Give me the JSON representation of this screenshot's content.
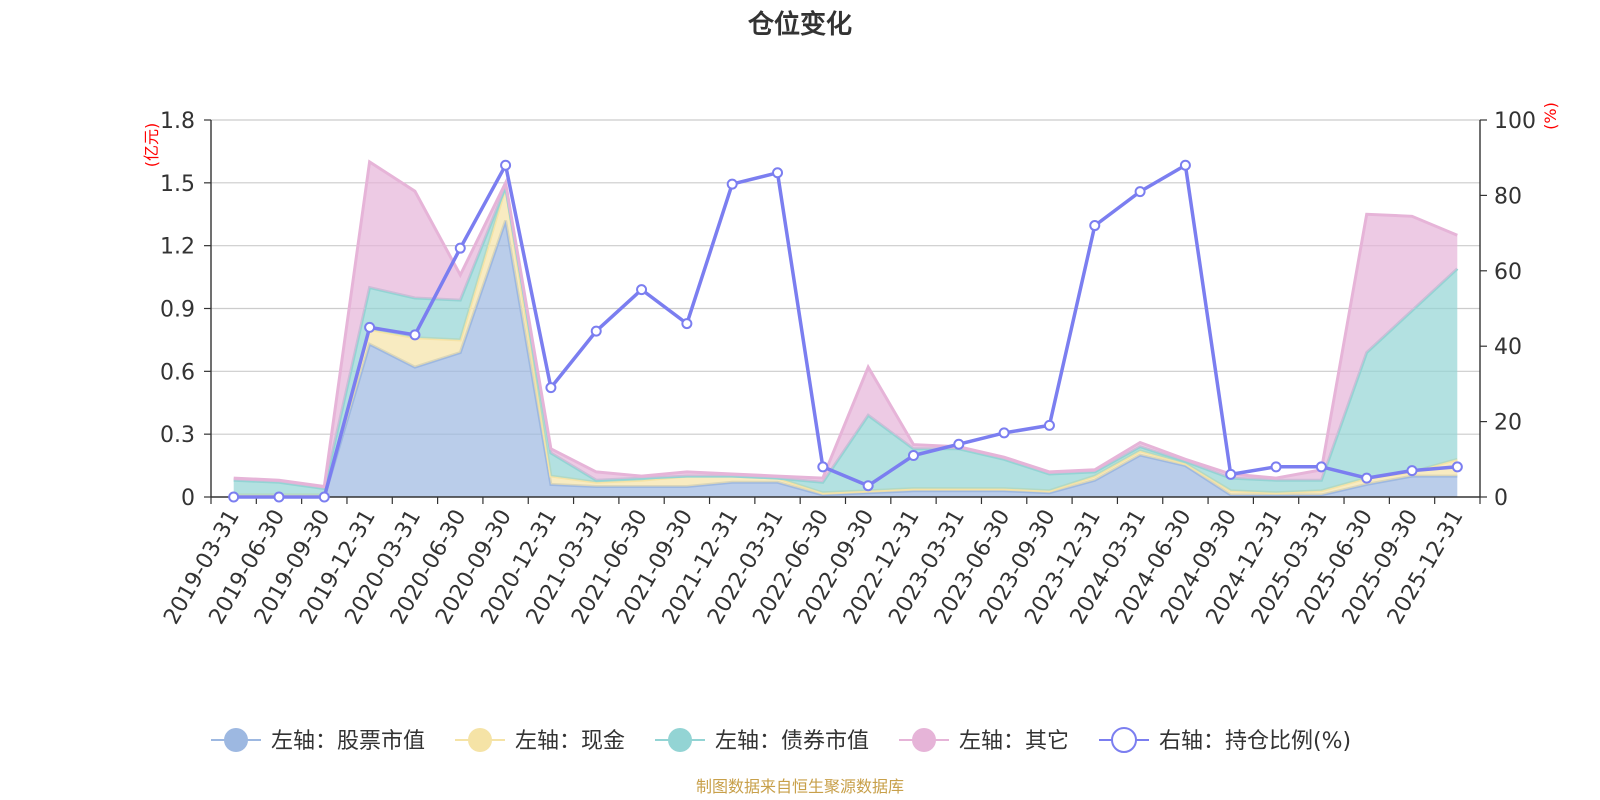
{
  "chart_data": {
    "type": "area",
    "title": "仓位变化",
    "left_unit": "(亿元)",
    "right_unit": "(%)",
    "categories": [
      "2019-03-31",
      "2019-06-30",
      "2019-09-30",
      "2019-12-31",
      "2020-03-31",
      "2020-06-30",
      "2020-09-30",
      "2020-12-31",
      "2021-03-31",
      "2021-06-30",
      "2021-09-30",
      "2021-12-31",
      "2022-03-31",
      "2022-06-30",
      "2022-09-30",
      "2022-12-31",
      "2023-03-31",
      "2023-06-30",
      "2023-09-30",
      "2023-12-31",
      "2024-03-31",
      "2024-06-30",
      "2024-09-30",
      "2024-12-31",
      "2025-03-31",
      "2025-06-30",
      "2025-09-30",
      "2025-12-31"
    ],
    "left_axis": {
      "min": 0,
      "max": 1.8,
      "ticks": [
        "0",
        "0.3",
        "0.6",
        "0.9",
        "1.2",
        "1.5",
        "1.8"
      ]
    },
    "right_axis": {
      "min": 0,
      "max": 100,
      "ticks": [
        "0",
        "20",
        "40",
        "60",
        "80",
        "100"
      ]
    },
    "stacked_series": [
      {
        "name": "左轴：股票市值",
        "color": "#9db8e1",
        "values": [
          0,
          0,
          0,
          0.73,
          0.62,
          0.69,
          1.32,
          0.06,
          0.05,
          0.05,
          0.05,
          0.07,
          0.07,
          0.01,
          0.02,
          0.03,
          0.03,
          0.03,
          0.02,
          0.08,
          0.2,
          0.15,
          0.01,
          0.01,
          0.01,
          0.06,
          0.1,
          0.1
        ]
      },
      {
        "name": "左轴：现金",
        "color": "#f5e3a6",
        "values": [
          0.01,
          0.01,
          0.01,
          0.07,
          0.14,
          0.06,
          0.16,
          0.04,
          0.02,
          0.03,
          0.05,
          0.03,
          0.02,
          0.01,
          0.01,
          0.01,
          0.01,
          0.01,
          0.01,
          0.02,
          0.02,
          0.01,
          0.02,
          0.01,
          0.02,
          0.03,
          0.02,
          0.08
        ]
      },
      {
        "name": "左轴：债券市值",
        "color": "#93d4d4",
        "values": [
          0.07,
          0.06,
          0.03,
          0.2,
          0.19,
          0.19,
          0,
          0.11,
          0.01,
          0.01,
          0,
          0,
          0,
          0.05,
          0.36,
          0.19,
          0.19,
          0.14,
          0.08,
          0.02,
          0.02,
          0.01,
          0.06,
          0.06,
          0.05,
          0.6,
          0.77,
          0.91
        ]
      },
      {
        "name": "左轴：其它",
        "color": "#e6b4d8",
        "values": [
          0.01,
          0.01,
          0.01,
          0.6,
          0.51,
          0.12,
          0.02,
          0.02,
          0.04,
          0.01,
          0.02,
          0.01,
          0.01,
          0.02,
          0.23,
          0.02,
          0.01,
          0.01,
          0.01,
          0.01,
          0.02,
          0.01,
          0.02,
          0.01,
          0.05,
          0.66,
          0.45,
          0.16
        ]
      }
    ],
    "line_series": {
      "name": "右轴：持仓比例(%)",
      "color": "#7b7ef0",
      "values": [
        0,
        0,
        0,
        45,
        43,
        66,
        88,
        29,
        44,
        55,
        46,
        83,
        86,
        8,
        3,
        11,
        14,
        17,
        19,
        72,
        81,
        88,
        6,
        8,
        8,
        5,
        7,
        8
      ]
    }
  },
  "footer": "制图数据来自恒生聚源数据库"
}
